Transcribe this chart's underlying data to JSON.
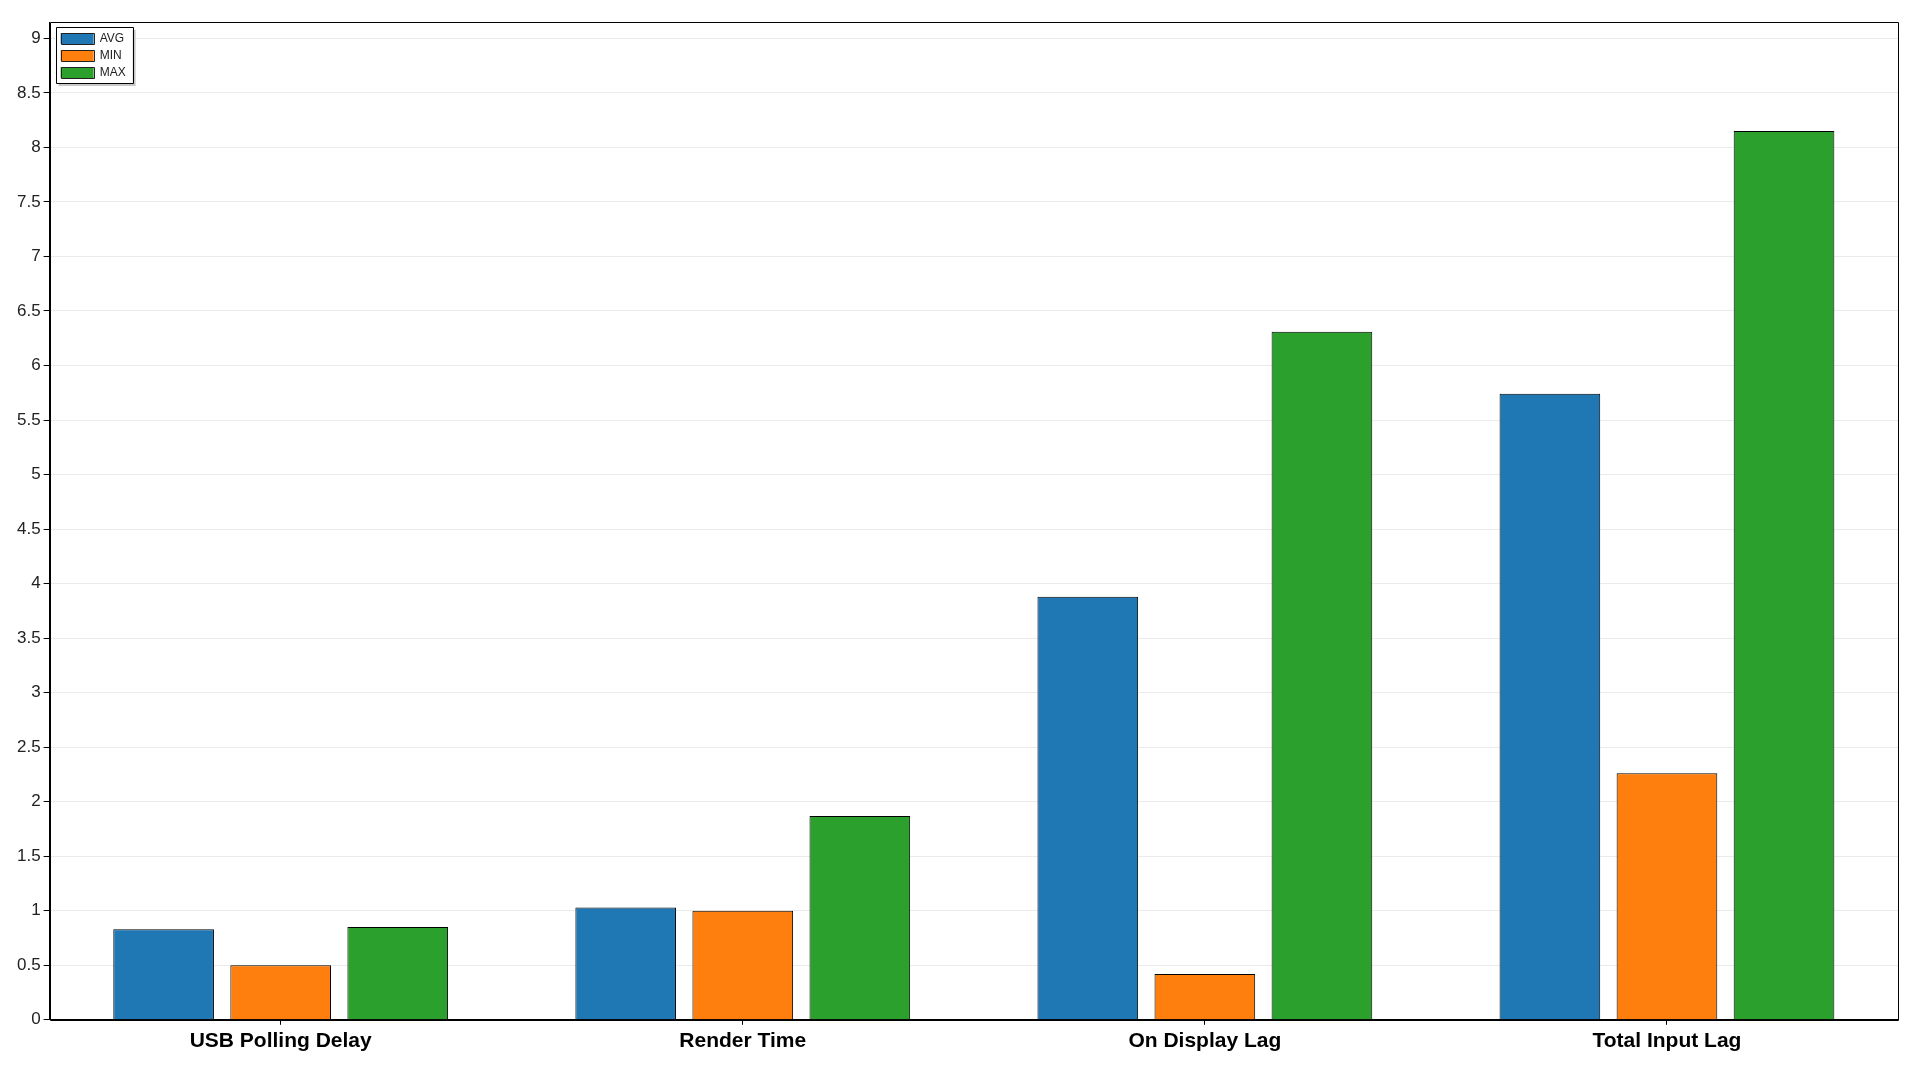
{
  "chart_data": {
    "type": "bar",
    "categories": [
      "USB Polling Delay",
      "Render Time",
      "On Display Lag",
      "Total Input Lag"
    ],
    "series": [
      {
        "name": "AVG",
        "color": "#1f77b4",
        "values": [
          0.83,
          1.03,
          3.88,
          5.74
        ]
      },
      {
        "name": "MIN",
        "color": "#ff7f0e",
        "values": [
          0.5,
          1.0,
          0.42,
          2.26
        ]
      },
      {
        "name": "MAX",
        "color": "#2ca02c",
        "values": [
          0.85,
          1.87,
          6.31,
          8.15
        ]
      }
    ],
    "ylim": [
      0,
      9.15
    ],
    "yticks": [
      0,
      0.5,
      1,
      1.5,
      2,
      2.5,
      3,
      3.5,
      4,
      4.5,
      5,
      5.5,
      6,
      6.5,
      7,
      7.5,
      8,
      8.5,
      9
    ],
    "grid": "y",
    "legend": "top left"
  }
}
